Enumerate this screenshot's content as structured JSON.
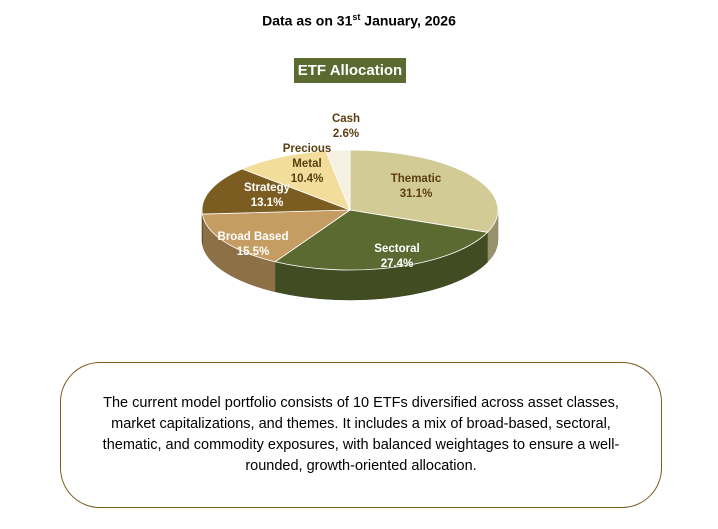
{
  "header": {
    "text": "Data as on 31",
    "sup": "st",
    "rest": " January, 2026"
  },
  "chart_data": {
    "type": "pie3d",
    "title": "ETF Allocation",
    "categories": [
      "Thematic",
      "Sectoral",
      "Broad Based",
      "Strategy",
      "Precious Metal",
      "Cash"
    ],
    "values": [
      31.1,
      27.4,
      15.5,
      13.1,
      10.4,
      2.6
    ],
    "value_labels": [
      "31.1%",
      "27.4%",
      "15.5%",
      "13.1%",
      "10.4%",
      "2.6%"
    ],
    "colors": [
      "#d3cb96",
      "#5b6a31",
      "#c59c62",
      "#7b5d22",
      "#f2dd9a",
      "#f4f1e2"
    ]
  },
  "note": "The current model portfolio consists of 10 ETFs diversified across asset classes, market capitalizations, and themes. It includes a mix of broad-based, sectoral, thematic, and commodity exposures, with balanced weightages to ensure a well-rounded, growth-oriented allocation."
}
